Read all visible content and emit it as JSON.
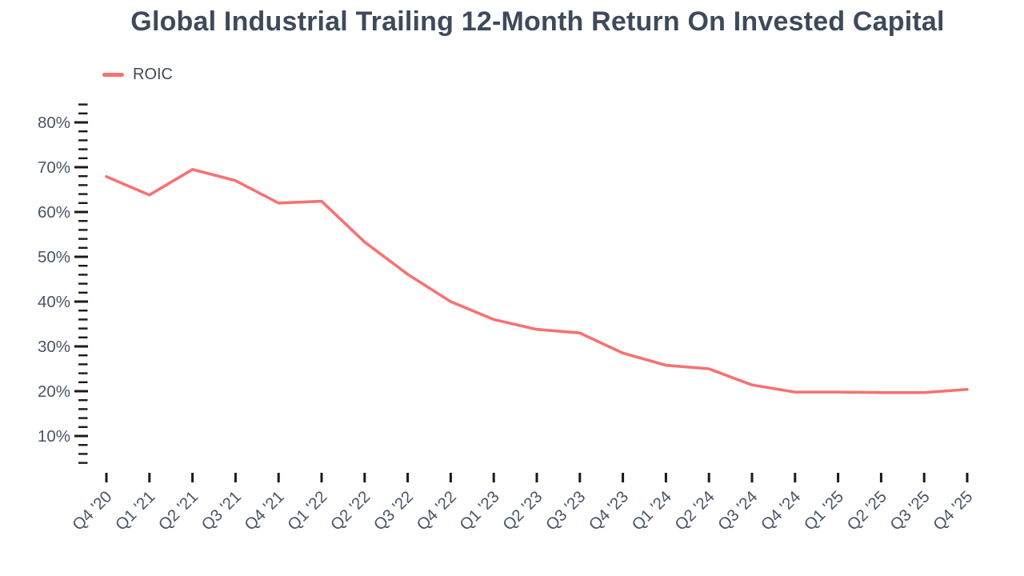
{
  "title": "Global Industrial Trailing 12-Month Return On Invested Capital",
  "legend": {
    "position": "top-left",
    "items": [
      {
        "label": "ROIC",
        "color": "#F87171"
      }
    ]
  },
  "colors": {
    "line": "#F87171",
    "title_text": "#3E4A5A",
    "axis_label": "#4A5568",
    "tick": "#1A1A1A",
    "background": "#FFFFFF"
  },
  "chart_data": {
    "type": "line",
    "title": "Global Industrial Trailing 12-Month Return On Invested Capital",
    "xlabel": "",
    "ylabel": "",
    "grid": false,
    "legend_position": "top-left",
    "categories": [
      "Q4 '20",
      "Q1 '21",
      "Q2 '21",
      "Q3 '21",
      "Q4 '21",
      "Q1 '22",
      "Q2 '22",
      "Q3 '22",
      "Q4 '22",
      "Q1 '23",
      "Q2 '23",
      "Q3 '23",
      "Q4 '23",
      "Q1 '24",
      "Q2 '24",
      "Q3 '24",
      "Q4 '24",
      "Q1 '25",
      "Q2 '25",
      "Q3 '25",
      "Q4 '25"
    ],
    "series": [
      {
        "name": "ROIC",
        "color": "#F87171",
        "unit": "%",
        "values": [
          67.9,
          63.8,
          69.5,
          67.0,
          62.0,
          62.4,
          53.3,
          46.1,
          40.0,
          36.0,
          33.8,
          33.0,
          28.5,
          25.8,
          25.0,
          21.4,
          19.8,
          19.8,
          19.7,
          19.7,
          20.4
        ]
      }
    ],
    "y_axis": {
      "unit": "%",
      "minor": {
        "min": 4,
        "max": 84,
        "step": 2
      },
      "majors": [
        {
          "value": 80,
          "label": "80%"
        },
        {
          "value": 70,
          "label": "70%"
        },
        {
          "value": 60,
          "label": "60%"
        },
        {
          "value": 50,
          "label": "50%"
        },
        {
          "value": 40,
          "label": "40%"
        },
        {
          "value": 30,
          "label": "30%"
        },
        {
          "value": 20,
          "label": "20%"
        },
        {
          "value": 10,
          "label": "10%"
        }
      ]
    }
  }
}
